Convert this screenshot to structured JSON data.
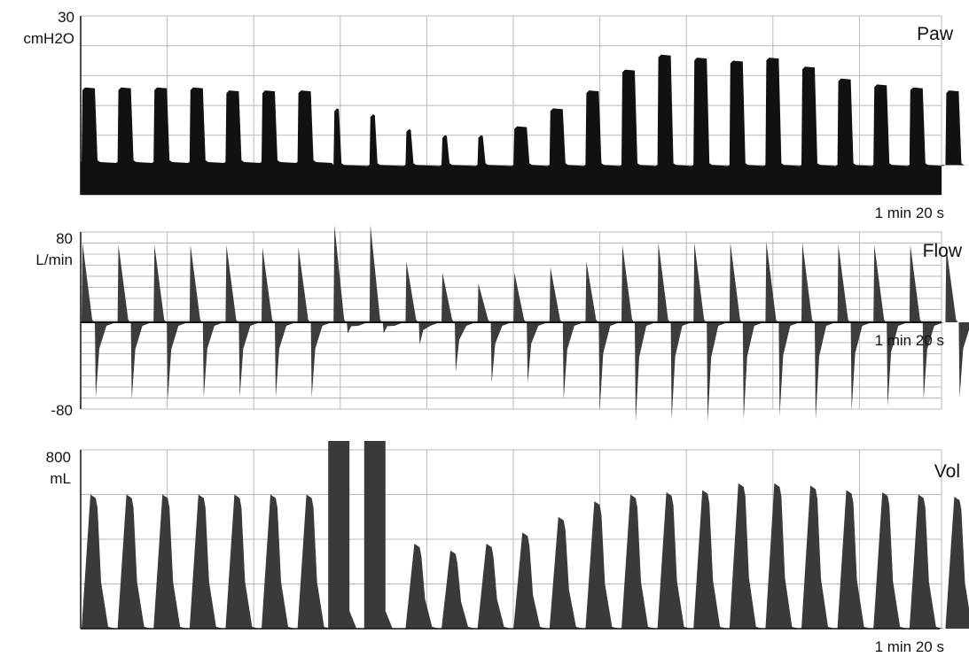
{
  "colors": {
    "background": "#ffffff",
    "grid": "#b9b9b9",
    "fill_paw": "#111111",
    "fill_flow": "#3c3c3c",
    "fill_vol": "#3a3a3a",
    "text": "#111111"
  },
  "chart_data": [
    {
      "type": "area",
      "title": "Paw",
      "unit": "cmH2O",
      "ylim": [
        0,
        30
      ],
      "y_ticks": [
        "30"
      ],
      "time_window": "1 min 20 s",
      "grid": true,
      "baseline_levels": [
        5.5,
        5.5,
        5.5,
        5.5,
        5.5,
        5.5,
        5.5,
        5.0,
        5.0,
        5.0,
        5.0,
        5.0,
        5.0,
        5.0,
        5.0,
        5.0,
        5.0,
        5.0,
        5.0,
        5.0,
        5.0,
        5.0,
        5.0,
        5.0,
        5.0,
        5.0,
        5.0,
        5.0
      ],
      "breath_peaks": [
        18,
        18,
        18,
        18,
        17.5,
        17.5,
        17.5,
        14.5,
        13.5,
        11,
        10,
        10,
        11.5,
        14.5,
        17.5,
        21,
        23.5,
        23,
        22.5,
        23,
        21.5,
        19.5,
        18.5,
        18,
        17.5,
        17.5,
        17
      ]
    },
    {
      "type": "area",
      "title": "Flow",
      "unit": "L/min",
      "ylim": [
        -80,
        80
      ],
      "y_ticks": [
        "80",
        "-80"
      ],
      "time_window": "1 min 20 s",
      "grid": true,
      "inspiratory_peaks": [
        72,
        70,
        70,
        70,
        70,
        68,
        68,
        92,
        92,
        55,
        45,
        35,
        45,
        50,
        55,
        70,
        72,
        72,
        72,
        73,
        72,
        70,
        70,
        70,
        68,
        68,
        64
      ],
      "expiratory_peaks": [
        -68,
        -70,
        -70,
        -68,
        -68,
        -68,
        -68,
        -10,
        -10,
        -20,
        -45,
        -55,
        -55,
        -70,
        -80,
        -90,
        -88,
        -90,
        -88,
        -85,
        -88,
        -80,
        -76,
        -70,
        -68,
        -66,
        -66
      ]
    },
    {
      "type": "area",
      "title": "Vol",
      "unit": "mL",
      "ylim": [
        0,
        800
      ],
      "y_ticks": [
        "800"
      ],
      "time_window": "1 min 20 s",
      "grid": true,
      "breath_volumes": [
        600,
        600,
        600,
        600,
        600,
        600,
        600,
        850,
        850,
        380,
        350,
        380,
        430,
        500,
        570,
        600,
        610,
        620,
        650,
        650,
        640,
        620,
        610,
        600,
        590,
        590,
        580
      ]
    }
  ]
}
